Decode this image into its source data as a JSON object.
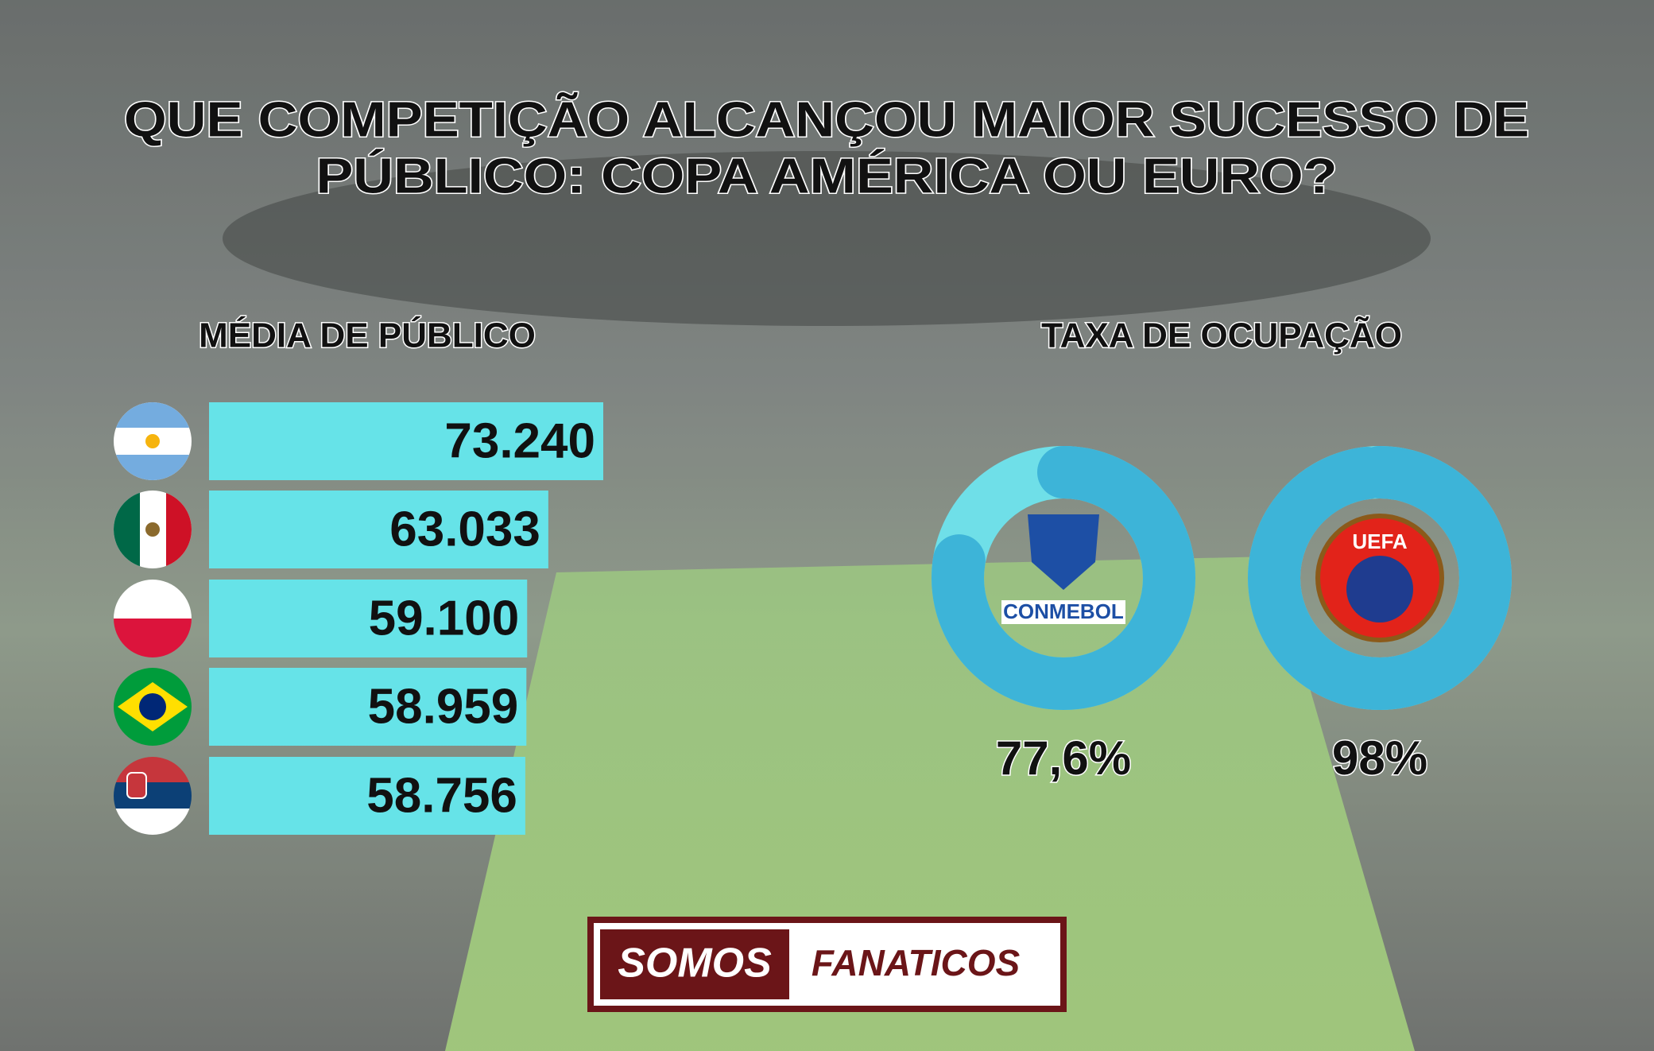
{
  "header": {
    "title_lines": [
      "QUE COMPETIÇÃO ALCANÇOU MAIOR SUCESSO DE",
      "PÚBLICO: COPA AMÉRICA OU EURO?"
    ]
  },
  "chart_data": [
    {
      "type": "bar",
      "title": "MÉDIA DE PÚBLICO",
      "categories": [
        null,
        null,
        null,
        null,
        null
      ],
      "values": [
        73240,
        63033,
        59100,
        58959,
        58756
      ],
      "value_labels": [
        "73.240",
        "63.033",
        "59.100",
        "58.959",
        "58.756"
      ],
      "color": "#66e3e8"
    },
    {
      "type": "donut",
      "title": "TAXA DE OCUPAÇÃO",
      "categories": [
        "CONMEBOL",
        "UEFA"
      ],
      "values": [
        77.6,
        98
      ],
      "value_labels": [
        "77,6%",
        "98%"
      ],
      "color": "#3db4d8",
      "track_color": "#6fdfe8"
    }
  ],
  "logo": {
    "left": "SOMOS",
    "right": "FANATICOS"
  }
}
